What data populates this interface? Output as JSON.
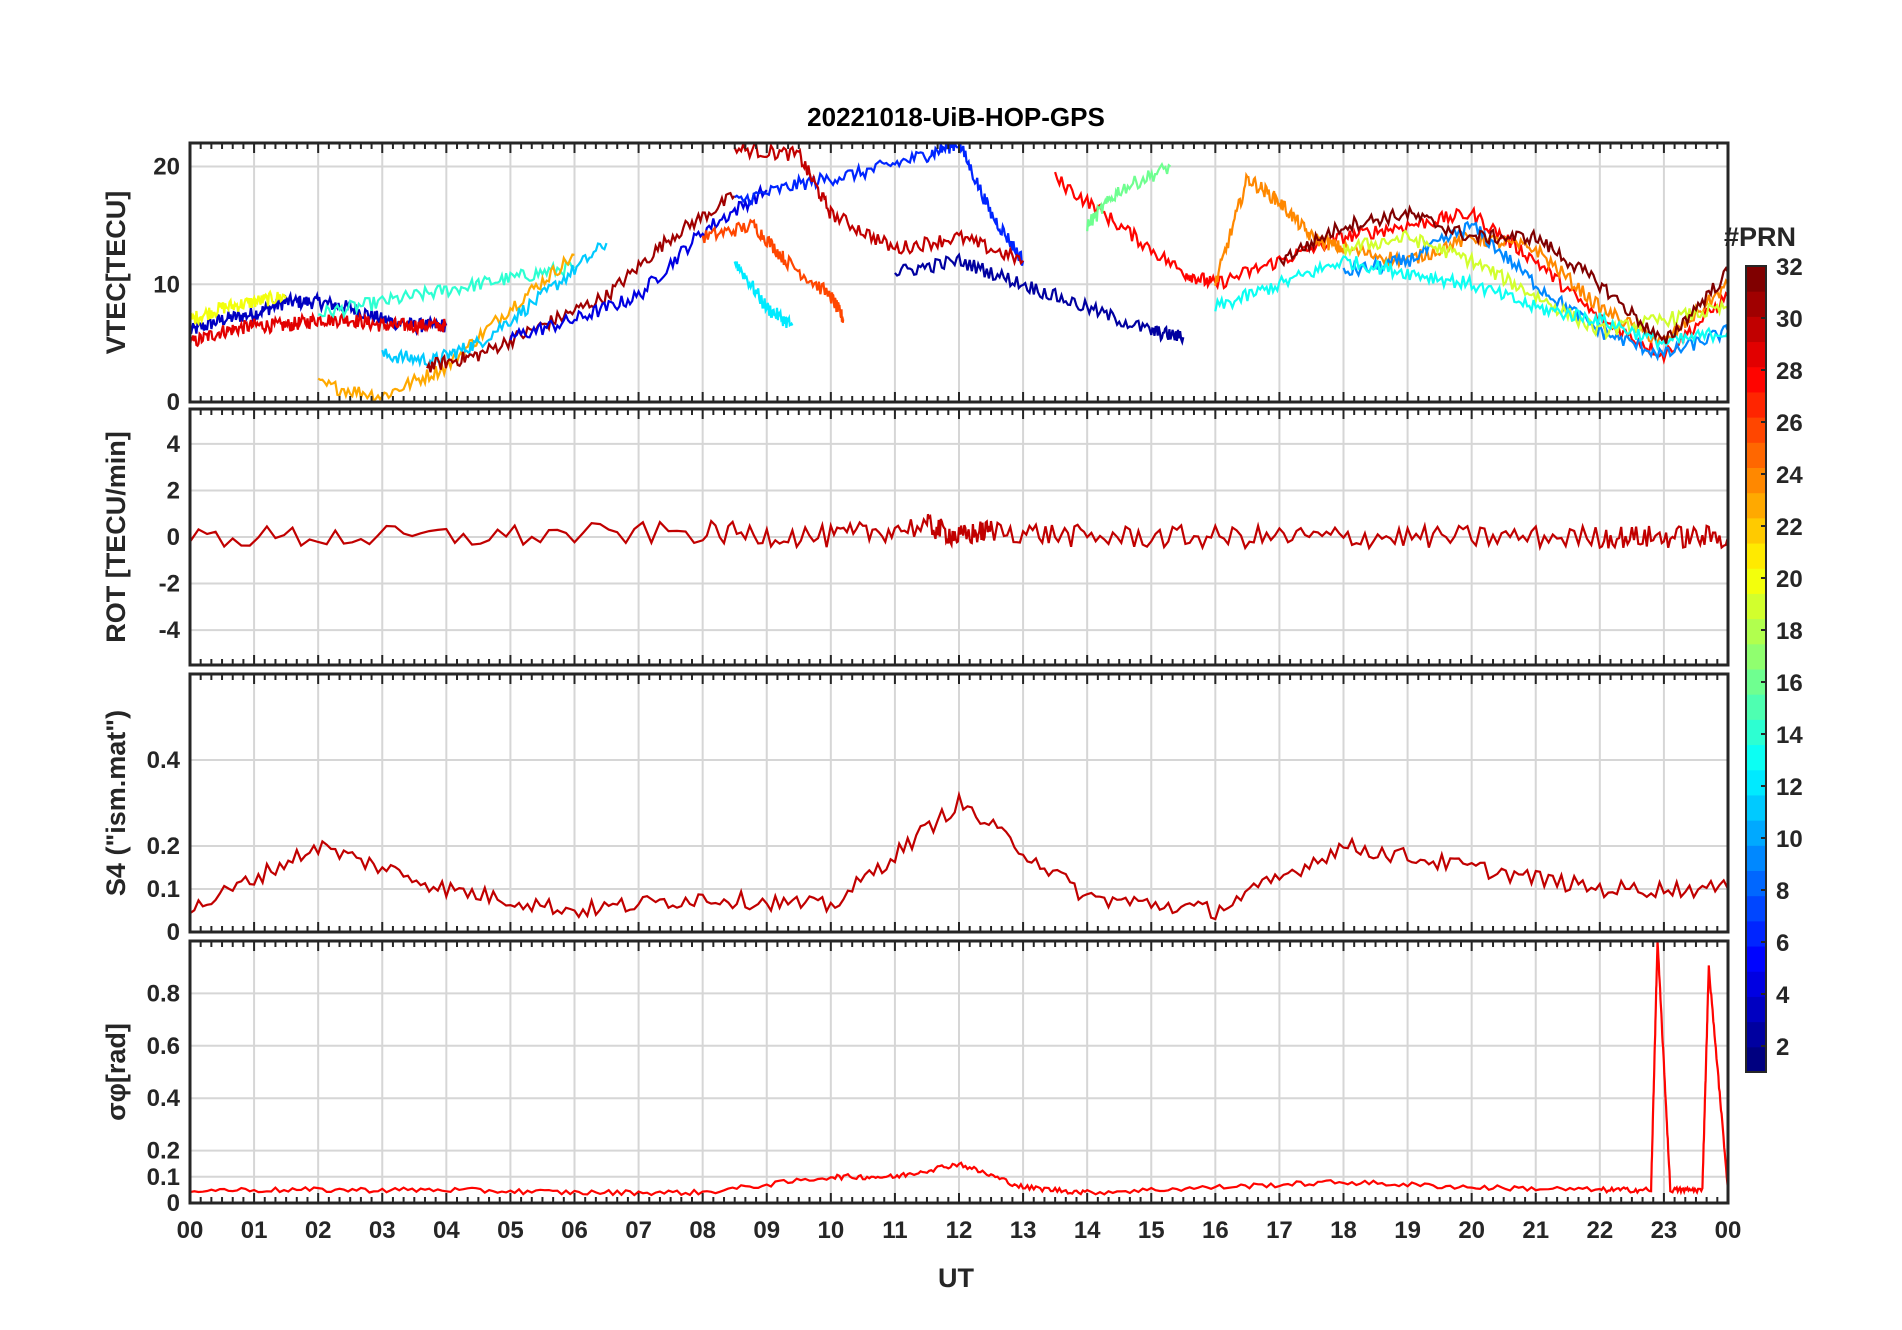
{
  "chart_data": {
    "type": "line",
    "title": "20221018-UiB-HOP-GPS",
    "xlabel": "UT",
    "x_tick_labels": [
      "00",
      "01",
      "02",
      "03",
      "04",
      "05",
      "06",
      "07",
      "08",
      "09",
      "10",
      "11",
      "12",
      "13",
      "14",
      "15",
      "16",
      "17",
      "18",
      "19",
      "20",
      "21",
      "22",
      "23",
      "00"
    ],
    "xlim": [
      0,
      24
    ],
    "grid": true,
    "colorbar": {
      "title": "#PRN",
      "range": [
        1,
        32
      ],
      "tick_labels": [
        "2",
        "4",
        "6",
        "8",
        "10",
        "12",
        "14",
        "16",
        "18",
        "20",
        "22",
        "24",
        "26",
        "28",
        "30",
        "32"
      ],
      "colormap": "jet"
    },
    "panels": [
      {
        "name": "vtec",
        "ylabel": "VTEC[TECU]",
        "ylim": [
          0,
          22
        ],
        "y_ticks": [
          0,
          10,
          20
        ],
        "y_tick_labels": [
          "0",
          "10",
          "20"
        ],
        "series": [
          {
            "prn": 3,
            "x": [
              0,
              0.5,
              1,
              1.5,
              2,
              2.5,
              3,
              3.5,
              4
            ],
            "y": [
              6,
              7,
              7.5,
              8.5,
              8.5,
              8,
              7,
              6.5,
              6.5
            ]
          },
          {
            "prn": 29,
            "x": [
              0,
              0.5,
              1,
              1.5,
              2,
              2.5,
              3,
              3.5,
              4
            ],
            "y": [
              5,
              6,
              6.5,
              6.5,
              7,
              7,
              6.5,
              6.5,
              6.5
            ]
          },
          {
            "prn": 20,
            "x": [
              0,
              0.5,
              1,
              1.5
            ],
            "y": [
              7,
              8,
              8.5,
              9
            ]
          },
          {
            "prn": 14,
            "x": [
              2,
              3,
              4,
              5,
              6
            ],
            "y": [
              7.5,
              8.5,
              9.5,
              10.5,
              11.5
            ]
          },
          {
            "prn": 23,
            "x": [
              2,
              3,
              4,
              5,
              6
            ],
            "y": [
              1.5,
              0.5,
              3,
              8,
              12.5
            ]
          },
          {
            "prn": 11,
            "x": [
              3,
              3.8,
              4.5,
              5.5,
              6.5
            ],
            "y": [
              4,
              3.5,
              5,
              9,
              13.5
            ]
          },
          {
            "prn": 31,
            "x": [
              3.7,
              4.5,
              5.5,
              6.5,
              7.5,
              8.5
            ],
            "y": [
              3,
              4,
              6.5,
              9,
              14,
              17.5
            ]
          },
          {
            "prn": 4,
            "x": [
              5,
              6,
              7,
              8,
              9
            ],
            "y": [
              5.5,
              7,
              9,
              14.5,
              18
            ]
          },
          {
            "prn": 26,
            "x": [
              8,
              8.8,
              9.3,
              10,
              10.2
            ],
            "y": [
              14,
              15,
              12,
              9,
              7
            ]
          },
          {
            "prn": 12,
            "x": [
              8.5,
              9,
              9.4
            ],
            "y": [
              12,
              8,
              6.5
            ]
          },
          {
            "prn": 6,
            "x": [
              8.5,
              9.5,
              10.5,
              11.5,
              12,
              12.5,
              13
            ],
            "y": [
              17,
              18.5,
              19.5,
              21,
              22,
              16,
              12
            ]
          },
          {
            "prn": 30,
            "x": [
              8.5,
              9.5,
              10,
              11,
              12,
              13
            ],
            "y": [
              21.5,
              21,
              16,
              13,
              14,
              12
            ]
          },
          {
            "prn": 28,
            "x": [
              13.5,
              14.5,
              15.5,
              16,
              17,
              18,
              19,
              20,
              21,
              22,
              23,
              24
            ],
            "y": [
              19,
              15,
              11,
              10,
              12,
              14,
              15,
              16,
              12,
              7,
              4,
              9
            ]
          },
          {
            "prn": 16,
            "x": [
              14,
              14.5,
              15.3
            ],
            "y": [
              15,
              18,
              20
            ]
          },
          {
            "prn": 24,
            "x": [
              16,
              16.5,
              17,
              17.5,
              18,
              19,
              20,
              21,
              22,
              23,
              24
            ],
            "y": [
              10,
              19,
              17,
              14,
              13,
              12,
              14,
              13,
              8,
              5,
              10
            ]
          },
          {
            "prn": 9,
            "x": [
              18,
              19,
              20,
              21,
              22,
              23,
              24
            ],
            "y": [
              11,
              12,
              15,
              10,
              6,
              4,
              6
            ]
          },
          {
            "prn": 19,
            "x": [
              18,
              19,
              20,
              21,
              22,
              23,
              24
            ],
            "y": [
              13,
              14,
              12,
              9,
              6,
              7,
              8
            ]
          },
          {
            "prn": 13,
            "x": [
              16,
              17,
              18,
              19,
              20,
              21,
              22,
              23,
              24
            ],
            "y": [
              8,
              10,
              12,
              11,
              10,
              8,
              7,
              5,
              6
            ]
          },
          {
            "prn": 2,
            "x": [
              11,
              12,
              13,
              14,
              15,
              15.5
            ],
            "y": [
              11,
              12,
              10,
              8,
              6,
              5.5
            ]
          },
          {
            "prn": 32,
            "x": [
              17,
              18,
              19,
              20,
              21,
              22,
              23,
              24
            ],
            "y": [
              12,
              15,
              16,
              14,
              14,
              10,
              5,
              11
            ]
          }
        ]
      },
      {
        "name": "rot",
        "ylabel": "ROT [TECU/min]",
        "ylim": [
          -5.5,
          5.5
        ],
        "y_ticks": [
          -4,
          -2,
          0,
          2,
          4
        ],
        "y_tick_labels": [
          "-4",
          "-2",
          "0",
          "2",
          "4"
        ],
        "series": [
          {
            "prn": 30,
            "x": [
              0,
              4,
              8,
              10,
              11.5,
              12,
              12.5,
              14,
              16,
              18,
              20,
              22,
              23,
              24
            ],
            "y": [
              0,
              0,
              0.2,
              0,
              0.5,
              0,
              0.3,
              0,
              0,
              0,
              0,
              0,
              0,
              0
            ]
          }
        ]
      },
      {
        "name": "s4",
        "ylabel": "S4 (\"ism.mat\")",
        "ylim": [
          0,
          0.6
        ],
        "y_ticks": [
          0,
          0.1,
          0.2,
          0.4
        ],
        "y_tick_labels": [
          "0",
          "0.1",
          "0.2",
          "0.4"
        ],
        "series": [
          {
            "prn": 30,
            "x": [
              0,
              2,
              4,
              6,
              8,
              10,
              12,
              14,
              16,
              18,
              20,
              22,
              24
            ],
            "y": [
              0.05,
              0.2,
              0.1,
              0.05,
              0.08,
              0.06,
              0.3,
              0.08,
              0.05,
              0.2,
              0.15,
              0.1,
              0.1
            ]
          }
        ]
      },
      {
        "name": "sigma_phi",
        "ylabel": "σφ[rad]",
        "ylim": [
          0,
          1
        ],
        "y_ticks": [
          0,
          0.1,
          0.2,
          0.4,
          0.6,
          0.8
        ],
        "y_tick_labels": [
          "0",
          "0.1",
          "0.2",
          "0.4",
          "0.6",
          "0.8"
        ],
        "series": [
          {
            "prn": 28,
            "x": [
              0,
              2,
              4,
              6,
              8,
              10,
              11,
              12,
              13,
              14,
              16,
              18,
              20,
              22,
              22.8,
              22.9,
              23.1,
              23.6,
              23.7,
              24
            ],
            "y": [
              0.05,
              0.05,
              0.05,
              0.04,
              0.04,
              0.1,
              0.1,
              0.15,
              0.06,
              0.04,
              0.06,
              0.08,
              0.06,
              0.05,
              0.05,
              1.0,
              0.05,
              0.05,
              0.9,
              0.05
            ]
          }
        ]
      }
    ]
  },
  "colors": {
    "grid": "#d6d6d6",
    "axes": "#262626"
  }
}
